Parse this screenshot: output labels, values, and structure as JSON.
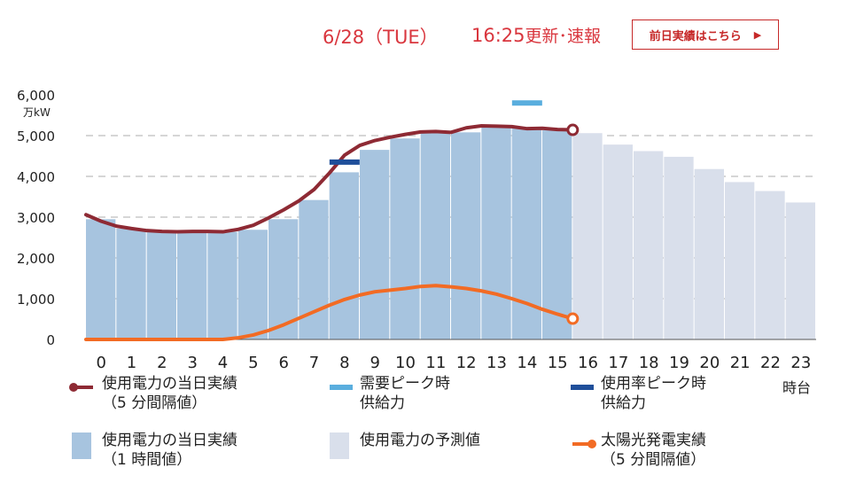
{
  "header": {
    "date": "6/28（TUE）",
    "time": "16:25",
    "update_label": "更新･速報",
    "prev_day_button": "前日実績はこちら"
  },
  "colors": {
    "actual_bar": "#a7c4df",
    "forecast_bar": "#d9dfeb",
    "usage_line": "#8e2a34",
    "solar_line": "#f26b24",
    "demand_peak": "#5aaede",
    "usage_rate_peak": "#1f4f9a",
    "header_accent": "#d9363e"
  },
  "chart_data": {
    "type": "bar",
    "unit": "万kW",
    "x_suffix": "時台",
    "y_ticks": [
      "6,000",
      "5,000",
      "4,000",
      "3,000",
      "2,000",
      "1,000",
      "0"
    ],
    "ylim": [
      0,
      6000
    ],
    "categories": [
      "0",
      "1",
      "2",
      "3",
      "4",
      "5",
      "6",
      "7",
      "8",
      "9",
      "10",
      "11",
      "12",
      "13",
      "14",
      "15",
      "16",
      "17",
      "18",
      "19",
      "20",
      "21",
      "22",
      "23"
    ],
    "series": [
      {
        "name": "使用電力の当日実績（1時間値）",
        "kind": "bar",
        "values": [
          2950,
          2720,
          2640,
          2620,
          2640,
          2690,
          2950,
          3420,
          4100,
          4650,
          4930,
          5080,
          5080,
          5230,
          5200,
          5130,
          null,
          null,
          null,
          null,
          null,
          null,
          null,
          null
        ]
      },
      {
        "name": "使用電力の予測値",
        "kind": "bar",
        "values": [
          null,
          null,
          null,
          null,
          null,
          null,
          null,
          null,
          null,
          null,
          null,
          null,
          null,
          null,
          null,
          null,
          5060,
          4780,
          4620,
          4480,
          4180,
          3860,
          3640,
          3360
        ]
      },
      {
        "name": "使用電力の当日実績（5分間隔値）",
        "kind": "line",
        "x": [
          0,
          0.5,
          1,
          1.5,
          2,
          2.5,
          3,
          3.5,
          4,
          4.5,
          5,
          5.5,
          6,
          6.5,
          7,
          7.5,
          8,
          8.5,
          9,
          9.5,
          10,
          10.5,
          11,
          11.5,
          12,
          12.5,
          13,
          13.5,
          14,
          14.5,
          15,
          15.5,
          16
        ],
        "values": [
          3060,
          2900,
          2780,
          2720,
          2670,
          2650,
          2640,
          2650,
          2650,
          2640,
          2700,
          2800,
          2980,
          3180,
          3400,
          3680,
          4080,
          4520,
          4760,
          4880,
          4960,
          5030,
          5090,
          5100,
          5080,
          5190,
          5240,
          5230,
          5220,
          5170,
          5180,
          5150,
          5140
        ]
      },
      {
        "name": "太陽光発電実績（5分間隔値）",
        "kind": "line",
        "x": [
          0,
          1,
          2,
          3,
          4,
          4.5,
          5,
          5.5,
          6,
          6.5,
          7,
          7.5,
          8,
          8.5,
          9,
          9.5,
          10,
          10.5,
          11,
          11.5,
          12,
          12.5,
          13,
          13.5,
          14,
          14.5,
          15,
          15.5,
          16
        ],
        "values": [
          0,
          0,
          0,
          0,
          0,
          0,
          40,
          110,
          220,
          360,
          520,
          680,
          840,
          980,
          1090,
          1170,
          1210,
          1250,
          1300,
          1320,
          1290,
          1250,
          1190,
          1110,
          1000,
          880,
          740,
          620,
          510
        ]
      }
    ],
    "markers": [
      {
        "name": "需要ピーク時供給力",
        "x_hour": 14,
        "value": 5800
      },
      {
        "name": "使用率ピーク時供給力",
        "x_hour": 8,
        "value": 4350
      }
    ],
    "legend": [
      {
        "key": "usage5",
        "label_line1": "使用電力の当日実績",
        "label_line2": "（5 分間隔値）"
      },
      {
        "key": "demand_peak",
        "label_line1": "需要ピーク時",
        "label_line2": "供給力"
      },
      {
        "key": "rate_peak",
        "label_line1": "使用率ピーク時",
        "label_line2": "供給力"
      },
      {
        "key": "actual_bar",
        "label_line1": "使用電力の当日実績",
        "label_line2": "（1 時間値）"
      },
      {
        "key": "forecast_bar",
        "label_line1": "使用電力の予測値",
        "label_line2": ""
      },
      {
        "key": "solar",
        "label_line1": "太陽光発電実績",
        "label_line2": "（5 分間隔値）"
      }
    ],
    "grid": true,
    "legend_position": "bottom"
  }
}
